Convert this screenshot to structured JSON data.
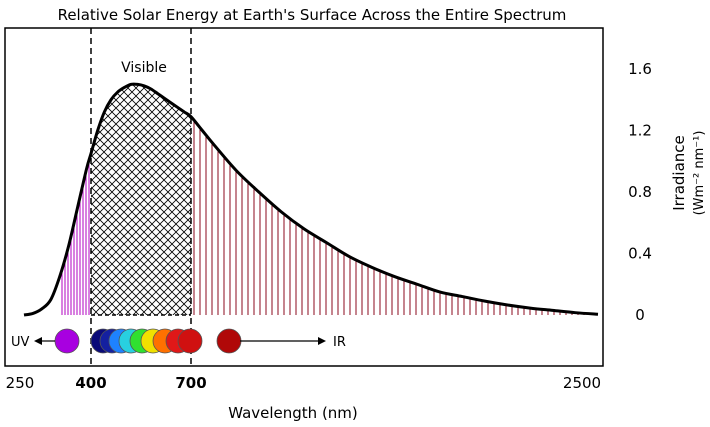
{
  "chart_data": {
    "type": "area",
    "title": "Relative Solar Energy at Earth's Surface Across the Entire Spectrum",
    "xlabel": "Wavelength (nm)",
    "ylabel": "Irradiance",
    "ylabel_units": "(Wm⁻² nm⁻¹)",
    "x_ticks": [
      {
        "value": 250,
        "label": "250",
        "bold": false
      },
      {
        "value": 400,
        "label": "400",
        "bold": true
      },
      {
        "value": 700,
        "label": "700",
        "bold": true
      },
      {
        "value": 2500,
        "label": "2500",
        "bold": false
      }
    ],
    "y_ticks": [
      0,
      0.4,
      0.8,
      1.2,
      1.6
    ],
    "y_tick_labels": [
      "0",
      "0.4",
      "0.8",
      "1.2",
      "1.6"
    ],
    "ylim": [
      -0.3,
      1.85
    ],
    "grid": false,
    "region_labels": {
      "visible": "Visible",
      "uv": "UV",
      "ir": "IR"
    },
    "region_boundaries": [
      400,
      700
    ],
    "x": [
      250,
      270,
      290,
      310,
      330,
      350,
      370,
      390,
      400,
      420,
      440,
      460,
      480,
      500,
      520,
      540,
      560,
      580,
      600,
      620,
      640,
      660,
      680,
      700,
      750,
      800,
      900,
      1000,
      1100,
      1200,
      1300,
      1400,
      1500,
      1600,
      1700,
      1800,
      1900,
      2000,
      2100,
      2200,
      2300,
      2400,
      2500
    ],
    "y": [
      0.0,
      0.01,
      0.04,
      0.1,
      0.25,
      0.45,
      0.7,
      0.95,
      1.05,
      1.2,
      1.32,
      1.4,
      1.45,
      1.48,
      1.5,
      1.5,
      1.49,
      1.47,
      1.44,
      1.41,
      1.38,
      1.35,
      1.32,
      1.29,
      1.2,
      1.11,
      0.94,
      0.8,
      0.67,
      0.56,
      0.47,
      0.38,
      0.31,
      0.25,
      0.2,
      0.15,
      0.12,
      0.09,
      0.065,
      0.045,
      0.03,
      0.015,
      0.005
    ],
    "spectrum_dots": [
      {
        "name": "uv",
        "color": "#a800e0"
      },
      {
        "name": "violet",
        "color": "#0a0a78"
      },
      {
        "name": "indigo",
        "color": "#1420a0"
      },
      {
        "name": "blue",
        "color": "#1e82ff"
      },
      {
        "name": "cyan",
        "color": "#28d0e0"
      },
      {
        "name": "green",
        "color": "#30e030"
      },
      {
        "name": "yellow",
        "color": "#f0e000"
      },
      {
        "name": "orange",
        "color": "#ff7000"
      },
      {
        "name": "red",
        "color": "#e01818"
      },
      {
        "name": "deep-red",
        "color": "#d01010"
      },
      {
        "name": "ir",
        "color": "#b00808"
      }
    ],
    "colors": {
      "uv_fill": "#b000c0",
      "ir_fill": "#8b0a1e",
      "curve": "#000000"
    }
  }
}
